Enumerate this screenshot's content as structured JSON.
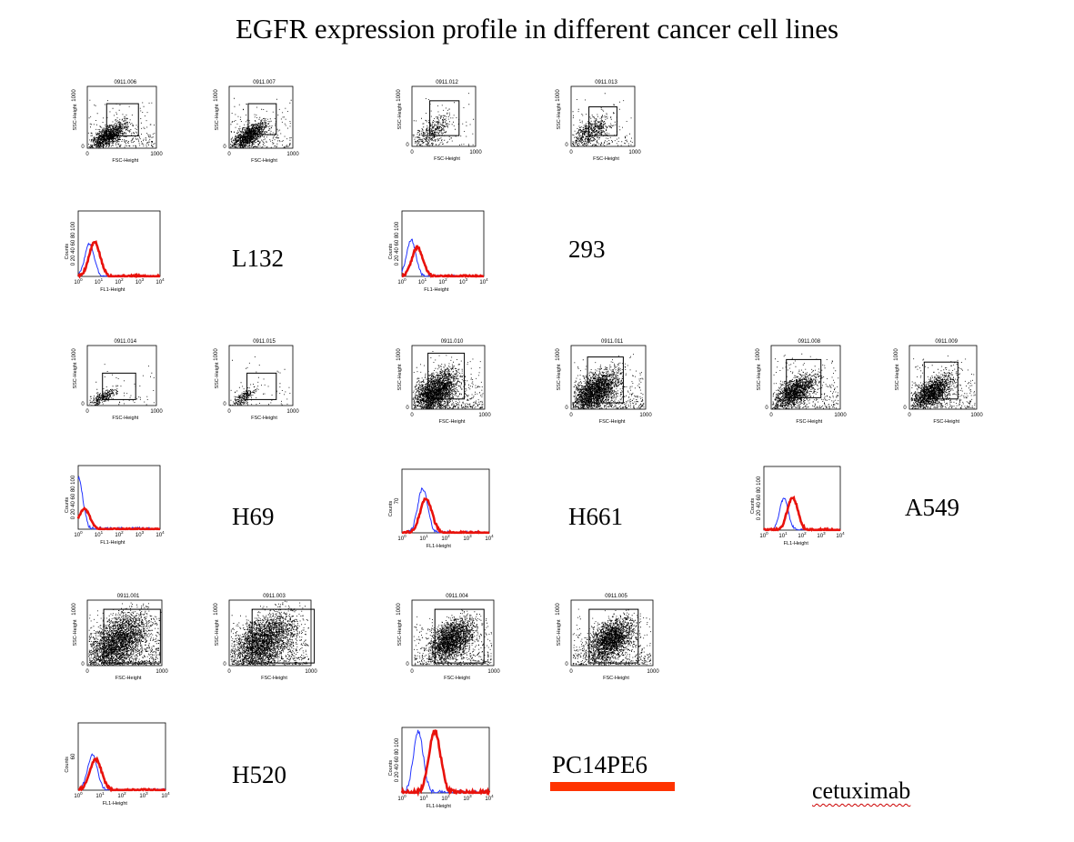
{
  "title": "EGFR expression profile in different cancer cell lines",
  "legend_label": "cetuximab",
  "colors": {
    "isotype": "#2233ff",
    "egfr": "#e8120c",
    "highlight_bar": "#ff3300",
    "dots": "#000000"
  },
  "chart_data": {
    "type": "scatter+histogram",
    "title": "EGFR expression profile in different cancer cell lines",
    "scatter_axes": {
      "xlabel": "FSC-Height",
      "ylabel": "SSC-Height",
      "xlim": [
        0,
        1000
      ],
      "ylim": [
        0,
        1000
      ],
      "xticks": [
        "0",
        "1000"
      ],
      "yticks": [
        "0",
        "1000"
      ]
    },
    "histogram_axes": {
      "xlabel": "FL1-Height",
      "ylabel": "Counts",
      "xscale": "log",
      "xlim": [
        1,
        10000
      ],
      "xtick_exponents": [
        0,
        1,
        2,
        3,
        4
      ]
    },
    "cell_lines": [
      {
        "name": "L132",
        "scatter_files": [
          "0911.006",
          "0911.007"
        ],
        "histogram": {
          "ylim": [
            0,
            100
          ],
          "yticks": [
            "0",
            "20",
            "40",
            "60",
            "80",
            "100"
          ],
          "isotype_peak_log": 0.55,
          "isotype_peak_pct": 50,
          "egfr_peak_log": 0.8,
          "egfr_peak_pct": 52
        }
      },
      {
        "name": "293",
        "scatter_files": [
          "0911.012",
          "0911.013"
        ],
        "histogram": {
          "ylim": [
            0,
            100
          ],
          "yticks": [
            "0",
            "20",
            "40",
            "60",
            "80",
            "100"
          ],
          "isotype_peak_log": 0.45,
          "isotype_peak_pct": 56,
          "egfr_peak_log": 0.75,
          "egfr_peak_pct": 44
        }
      },
      {
        "name": "H69",
        "scatter_files": [
          "0911.014",
          "0911.015"
        ],
        "histogram": {
          "ylim": [
            0,
            100
          ],
          "yticks": [
            "0",
            "20",
            "40",
            "60",
            "80",
            "100"
          ],
          "isotype_peak_log": 0.0,
          "isotype_peak_pct": 80,
          "egfr_peak_log": 0.3,
          "egfr_peak_pct": 32
        }
      },
      {
        "name": "H661",
        "scatter_files": [
          "0911.010",
          "0911.011"
        ],
        "histogram": {
          "ylim": [
            0,
            70
          ],
          "yticks": [
            "70"
          ],
          "isotype_peak_log": 0.95,
          "isotype_peak_pct": 70,
          "egfr_peak_log": 1.1,
          "egfr_peak_pct": 54
        }
      },
      {
        "name": "A549",
        "scatter_files": [
          "0911.008",
          "0911.009"
        ],
        "histogram": {
          "ylim": [
            0,
            100
          ],
          "yticks": [
            "0",
            "20",
            "40",
            "60",
            "80",
            "100"
          ],
          "isotype_peak_log": 1.05,
          "isotype_peak_pct": 50,
          "egfr_peak_log": 1.5,
          "egfr_peak_pct": 52
        }
      },
      {
        "name": "H520",
        "scatter_files": [
          "0911.001",
          "0911.003"
        ],
        "histogram": {
          "ylim": [
            0,
            60
          ],
          "yticks": [
            "60"
          ],
          "isotype_peak_log": 0.65,
          "isotype_peak_pct": 52,
          "egfr_peak_log": 0.8,
          "egfr_peak_pct": 46
        }
      },
      {
        "name": "PC14PE6",
        "scatter_files": [
          "0911.004",
          "0911.005"
        ],
        "histogram": {
          "ylim": [
            0,
            100
          ],
          "yticks": [
            "0",
            "20",
            "40",
            "60",
            "80",
            "100"
          ],
          "isotype_peak_log": 0.75,
          "isotype_peak_pct": 95,
          "egfr_peak_log": 1.5,
          "egfr_peak_pct": 95
        }
      }
    ]
  }
}
